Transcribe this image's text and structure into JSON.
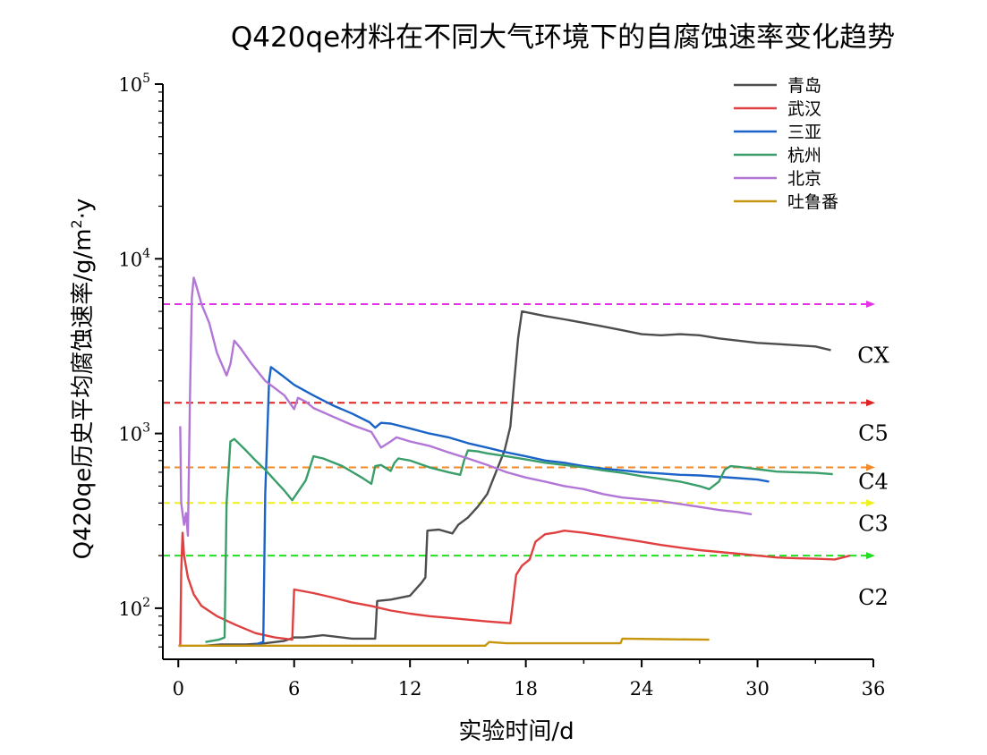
{
  "chart_data": {
    "type": "line",
    "title": "Q420qe材料在不同大气环境下的自腐蚀速率变化趋势",
    "xlabel": "实验时间/d",
    "ylabel_main": "Q420qe历史平均腐蚀速率/g/m",
    "ylabel_sup": "2",
    "ylabel_end": "·y",
    "xlim": [
      -0.8,
      36
    ],
    "ylim": [
      51,
      100000
    ],
    "y_scale": "log",
    "x_ticks": [
      0,
      6,
      12,
      18,
      24,
      30,
      36
    ],
    "x_tick_labels": [
      "0",
      "6",
      "12",
      "18",
      "24",
      "30",
      "36"
    ],
    "y_ticks": [
      {
        "value": 100,
        "base": "10",
        "exp": "2"
      },
      {
        "value": 1000,
        "base": "10",
        "exp": "3"
      },
      {
        "value": 10000,
        "base": "10",
        "exp": "4"
      },
      {
        "value": 100000,
        "base": "10",
        "exp": "5"
      }
    ],
    "legend_position": "top-right",
    "series": [
      {
        "name": "青岛",
        "color": "#4d4d4d",
        "points": [
          [
            1.4,
            61
          ],
          [
            2.2,
            62
          ],
          [
            3.5,
            62
          ],
          [
            4.5,
            63
          ],
          [
            5.5,
            65
          ],
          [
            6.0,
            68
          ],
          [
            6.5,
            68
          ],
          [
            7.5,
            70
          ],
          [
            9.0,
            67
          ],
          [
            10.2,
            67
          ],
          [
            10.3,
            110
          ],
          [
            11,
            112
          ],
          [
            12,
            118
          ],
          [
            12.6,
            140
          ],
          [
            12.8,
            150
          ],
          [
            12.9,
            278
          ],
          [
            13.5,
            282
          ],
          [
            14.2,
            268
          ],
          [
            14.5,
            300
          ],
          [
            15,
            330
          ],
          [
            15.5,
            380
          ],
          [
            16,
            450
          ],
          [
            16.5,
            620
          ],
          [
            16.9,
            800
          ],
          [
            17.2,
            1100
          ],
          [
            17.4,
            2000
          ],
          [
            17.6,
            3500
          ],
          [
            17.8,
            5000
          ],
          [
            19,
            4700
          ],
          [
            20,
            4500
          ],
          [
            21,
            4300
          ],
          [
            22,
            4100
          ],
          [
            23,
            3900
          ],
          [
            24,
            3700
          ],
          [
            25,
            3650
          ],
          [
            26,
            3700
          ],
          [
            27,
            3650
          ],
          [
            28,
            3500
          ],
          [
            29,
            3400
          ],
          [
            30,
            3300
          ],
          [
            31,
            3250
          ],
          [
            32,
            3200
          ],
          [
            33,
            3150
          ],
          [
            33.8,
            3000
          ]
        ]
      },
      {
        "name": "武汉",
        "color": "#e04040",
        "points": [
          [
            0.1,
            60
          ],
          [
            0.15,
            160
          ],
          [
            0.22,
            270
          ],
          [
            0.3,
            200
          ],
          [
            0.5,
            150
          ],
          [
            0.8,
            120
          ],
          [
            1.2,
            103
          ],
          [
            2,
            90
          ],
          [
            3,
            80
          ],
          [
            4,
            72
          ],
          [
            5,
            68
          ],
          [
            5.9,
            66
          ],
          [
            6.0,
            128
          ],
          [
            6.5,
            125
          ],
          [
            7,
            122
          ],
          [
            8,
            115
          ],
          [
            9,
            108
          ],
          [
            10,
            103
          ],
          [
            11,
            97
          ],
          [
            12,
            93
          ],
          [
            13,
            90
          ],
          [
            14,
            88
          ],
          [
            15,
            86
          ],
          [
            16,
            84
          ],
          [
            17.2,
            82
          ],
          [
            17.5,
            155
          ],
          [
            17.8,
            175
          ],
          [
            18.2,
            190
          ],
          [
            18.5,
            240
          ],
          [
            19,
            265
          ],
          [
            19.5,
            270
          ],
          [
            20,
            278
          ],
          [
            21,
            270
          ],
          [
            22,
            260
          ],
          [
            23,
            250
          ],
          [
            24,
            240
          ],
          [
            25,
            230
          ],
          [
            26,
            222
          ],
          [
            27,
            215
          ],
          [
            28,
            210
          ],
          [
            29,
            205
          ],
          [
            30,
            200
          ],
          [
            31,
            195
          ],
          [
            32,
            193
          ],
          [
            33,
            192
          ],
          [
            34,
            190
          ],
          [
            34.8,
            200
          ]
        ]
      },
      {
        "name": "三亚",
        "color": "#1a63c8",
        "points": [
          [
            4.0,
            62
          ],
          [
            4.4,
            64
          ],
          [
            4.5,
            450
          ],
          [
            4.7,
            2000
          ],
          [
            4.8,
            2400
          ],
          [
            5.5,
            2100
          ],
          [
            6,
            1900
          ],
          [
            7,
            1650
          ],
          [
            8,
            1450
          ],
          [
            9,
            1300
          ],
          [
            9.9,
            1160
          ],
          [
            10.2,
            1080
          ],
          [
            10.5,
            1150
          ],
          [
            11,
            1140
          ],
          [
            12,
            1070
          ],
          [
            13,
            1000
          ],
          [
            14,
            950
          ],
          [
            15,
            880
          ],
          [
            16,
            830
          ],
          [
            17,
            780
          ],
          [
            18,
            740
          ],
          [
            19,
            700
          ],
          [
            20,
            680
          ],
          [
            21,
            650
          ],
          [
            22,
            630
          ],
          [
            23,
            615
          ],
          [
            24,
            600
          ],
          [
            25,
            590
          ],
          [
            26,
            580
          ],
          [
            27,
            575
          ],
          [
            28,
            565
          ],
          [
            29,
            555
          ],
          [
            30,
            545
          ],
          [
            30.6,
            530
          ]
        ]
      },
      {
        "name": "杭州",
        "color": "#3a9e6a",
        "points": [
          [
            1.4,
            64
          ],
          [
            2.1,
            66
          ],
          [
            2.4,
            68
          ],
          [
            2.5,
            400
          ],
          [
            2.7,
            900
          ],
          [
            2.9,
            930
          ],
          [
            3.5,
            800
          ],
          [
            4.0,
            700
          ],
          [
            4.5,
            620
          ],
          [
            5.0,
            540
          ],
          [
            5.5,
            470
          ],
          [
            5.9,
            415
          ],
          [
            6.4,
            500
          ],
          [
            6.6,
            540
          ],
          [
            7.0,
            740
          ],
          [
            7.5,
            720
          ],
          [
            8.5,
            650
          ],
          [
            9.5,
            560
          ],
          [
            10.0,
            515
          ],
          [
            10.2,
            650
          ],
          [
            10.5,
            660
          ],
          [
            11.0,
            610
          ],
          [
            11.2,
            680
          ],
          [
            11.4,
            720
          ],
          [
            12,
            700
          ],
          [
            13,
            640
          ],
          [
            14,
            600
          ],
          [
            14.6,
            580
          ],
          [
            14.8,
            700
          ],
          [
            15,
            800
          ],
          [
            15.5,
            790
          ],
          [
            16,
            770
          ],
          [
            17,
            740
          ],
          [
            18,
            710
          ],
          [
            19,
            680
          ],
          [
            20,
            660
          ],
          [
            21,
            640
          ],
          [
            22,
            615
          ],
          [
            23,
            595
          ],
          [
            24,
            570
          ],
          [
            25,
            550
          ],
          [
            26,
            530
          ],
          [
            27,
            500
          ],
          [
            27.5,
            480
          ],
          [
            28.0,
            530
          ],
          [
            28.3,
            620
          ],
          [
            28.6,
            650
          ],
          [
            29,
            645
          ],
          [
            30,
            625
          ],
          [
            31,
            605
          ],
          [
            32,
            600
          ],
          [
            33,
            595
          ],
          [
            33.9,
            585
          ]
        ]
      },
      {
        "name": "北京",
        "color": "#b276d6",
        "points": [
          [
            0.1,
            1100
          ],
          [
            0.15,
            400
          ],
          [
            0.3,
            300
          ],
          [
            0.4,
            350
          ],
          [
            0.5,
            260
          ],
          [
            0.6,
            1500
          ],
          [
            0.7,
            6000
          ],
          [
            0.8,
            7800
          ],
          [
            0.9,
            7200
          ],
          [
            1.2,
            5500
          ],
          [
            1.6,
            4300
          ],
          [
            2.0,
            2900
          ],
          [
            2.5,
            2150
          ],
          [
            2.7,
            2500
          ],
          [
            2.9,
            3400
          ],
          [
            3.2,
            3100
          ],
          [
            3.8,
            2500
          ],
          [
            4.5,
            2000
          ],
          [
            5.5,
            1650
          ],
          [
            6.0,
            1380
          ],
          [
            6.2,
            1600
          ],
          [
            6.6,
            1520
          ],
          [
            7.0,
            1400
          ],
          [
            8,
            1250
          ],
          [
            9,
            1120
          ],
          [
            10,
            1020
          ],
          [
            10.5,
            830
          ],
          [
            11,
            900
          ],
          [
            11.3,
            950
          ],
          [
            12,
            900
          ],
          [
            13,
            850
          ],
          [
            14,
            780
          ],
          [
            15,
            720
          ],
          [
            16,
            660
          ],
          [
            17,
            600
          ],
          [
            18,
            560
          ],
          [
            19,
            530
          ],
          [
            20,
            500
          ],
          [
            21,
            480
          ],
          [
            22,
            450
          ],
          [
            23,
            430
          ],
          [
            24,
            420
          ],
          [
            25,
            410
          ],
          [
            26,
            395
          ],
          [
            27,
            380
          ],
          [
            28,
            365
          ],
          [
            29,
            355
          ],
          [
            29.7,
            345
          ]
        ]
      },
      {
        "name": "吐鲁番",
        "color": "#c8960e",
        "points": [
          [
            0,
            61
          ],
          [
            2,
            61
          ],
          [
            4,
            61
          ],
          [
            6,
            61
          ],
          [
            8,
            61
          ],
          [
            10,
            61
          ],
          [
            12,
            61
          ],
          [
            14,
            61
          ],
          [
            15.9,
            61
          ],
          [
            16.1,
            64
          ],
          [
            17,
            63
          ],
          [
            20,
            63
          ],
          [
            22,
            63
          ],
          [
            22.9,
            63
          ],
          [
            23.0,
            67
          ],
          [
            25,
            66.5
          ],
          [
            27.5,
            66
          ]
        ]
      }
    ],
    "reference_lines": [
      {
        "label": "",
        "value": 5500,
        "color": "#e632e6"
      },
      {
        "label": "CX",
        "value": 1500,
        "color": "#dd2222"
      },
      {
        "label": "C5",
        "value": 640,
        "color": "#f08a2a"
      },
      {
        "label": "C4",
        "value": 400,
        "color": "#f0f020"
      },
      {
        "label": "C3",
        "value": 200,
        "color": "#22dd22"
      }
    ],
    "zone_labels": [
      {
        "label": "CX",
        "value": 2800
      },
      {
        "label": "C5",
        "value": 1000
      },
      {
        "label": "C4",
        "value": 530
      },
      {
        "label": "C3",
        "value": 305
      },
      {
        "label": "C2",
        "value": 115
      }
    ]
  }
}
